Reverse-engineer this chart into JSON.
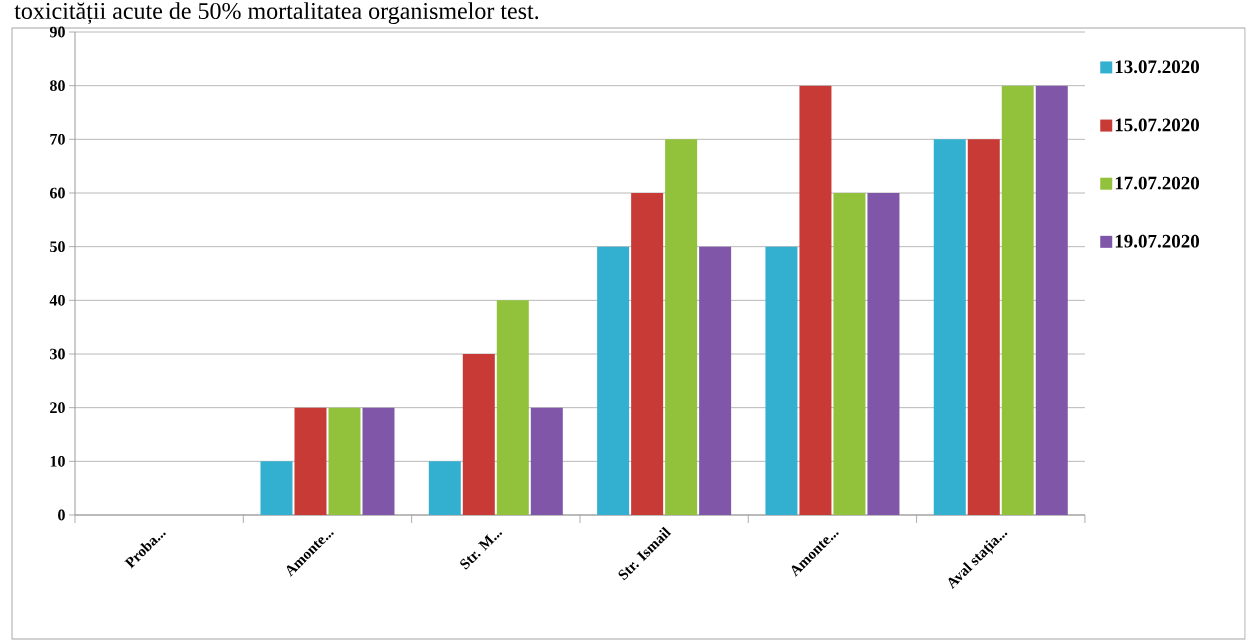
{
  "chart_data": {
    "type": "bar",
    "annotations": [
      "toxicității acute de 50% mortalitatea organismelor test."
    ],
    "categories": [
      "Proba...",
      "Amonte...",
      "Str. M...",
      "Str. Ismail",
      "Amonte...",
      "Aval stația..."
    ],
    "series": [
      {
        "name": "13.07.2020",
        "color": "#33b0d0",
        "values": [
          0,
          10,
          10,
          50,
          50,
          70
        ]
      },
      {
        "name": "15.07.2020",
        "color": "#c83a35",
        "values": [
          0,
          20,
          30,
          60,
          80,
          70
        ]
      },
      {
        "name": "17.07.2020",
        "color": "#92c23c",
        "values": [
          0,
          20,
          40,
          70,
          60,
          80
        ]
      },
      {
        "name": "19.07.2020",
        "color": "#7f56a8",
        "values": [
          0,
          20,
          20,
          50,
          60,
          80
        ]
      }
    ],
    "ylim": [
      0,
      90
    ],
    "yticks": [
      0,
      10,
      20,
      30,
      40,
      50,
      60,
      70,
      80,
      90
    ],
    "grid": "y",
    "legend": "right"
  }
}
